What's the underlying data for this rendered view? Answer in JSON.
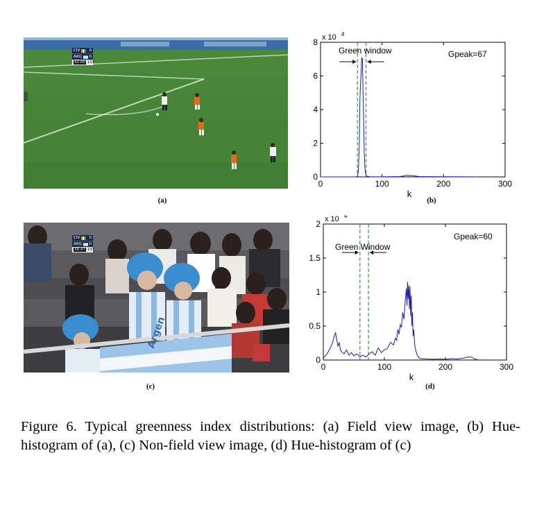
{
  "subfigures": {
    "a": {
      "label": "(a)"
    },
    "b": {
      "label": "(b)"
    },
    "c": {
      "label": "(c)"
    },
    "d": {
      "label": "(d)"
    }
  },
  "field_image": {
    "scorebug": {
      "team1": "CIV",
      "score1": "0",
      "team2": "ARG",
      "score2": "0",
      "clock": "42:00",
      "period": "1ST"
    }
  },
  "crowd_image": {
    "scorebug": {
      "team1": "CIV",
      "score1": "0",
      "team2": "ARG",
      "score2": "0",
      "clock": "38:47",
      "period": "1ST"
    },
    "banner_text": "Argen"
  },
  "caption": "Figure 6.  Typical greenness index distributions: (a) Field view image, (b) Hue-histogram of (a), (c) Non-field view image, (d) Hue-histogram of (c)",
  "chart_data": [
    {
      "id": "b",
      "type": "line",
      "xlabel": "k",
      "ylabel": "",
      "xlim": [
        0,
        300
      ],
      "ylim": [
        0,
        80000
      ],
      "xticks": [
        0,
        100,
        200,
        300
      ],
      "yticks": [
        0,
        2,
        4,
        6,
        8
      ],
      "yscale_label": "x 10",
      "yscale_exp": "4",
      "annotations": {
        "window_label": "Green window",
        "peak_label": "Gpeak=67"
      },
      "green_window": [
        60,
        74
      ],
      "colors": {
        "series": "#1a1aa6",
        "window": "#22aa22"
      },
      "series": [
        {
          "x": [
            0,
            50,
            58,
            60,
            61,
            62,
            63,
            64,
            65,
            66,
            67,
            68,
            69,
            70,
            71,
            72,
            73,
            74,
            76,
            80,
            100,
            130,
            140,
            150,
            160,
            200,
            250,
            255
          ],
          "y": [
            0,
            0,
            0,
            300,
            2000,
            8000,
            20000,
            45000,
            55000,
            62000,
            71000,
            70000,
            52000,
            35000,
            15000,
            6000,
            2500,
            800,
            300,
            100,
            50,
            200,
            900,
            700,
            200,
            100,
            50,
            0
          ]
        }
      ]
    },
    {
      "id": "d",
      "type": "line",
      "xlabel": "k",
      "ylabel": "",
      "xlim": [
        0,
        300
      ],
      "ylim": [
        0,
        20000
      ],
      "xticks": [
        0,
        100,
        200,
        300
      ],
      "yticks": [
        0,
        0.5,
        1,
        1.5,
        2
      ],
      "yscale_label": "x 10",
      "yscale_exp": "4",
      "annotations": {
        "window_label": "Green Window",
        "peak_label": "Gpeak=60"
      },
      "green_window": [
        60,
        74
      ],
      "colors": {
        "series": "#1a1aa6",
        "window": "#22aa22"
      },
      "series": [
        {
          "x": [
            0,
            5,
            10,
            15,
            18,
            20,
            22,
            24,
            26,
            28,
            30,
            34,
            38,
            42,
            46,
            50,
            55,
            60,
            65,
            70,
            75,
            80,
            85,
            90,
            95,
            100,
            105,
            110,
            115,
            118,
            120,
            122,
            124,
            126,
            128,
            130,
            132,
            134,
            136,
            137,
            138,
            139,
            140,
            141,
            142,
            143,
            144,
            145,
            146,
            147,
            148,
            150,
            152,
            154,
            156,
            158,
            160,
            170,
            180,
            190,
            200,
            210,
            220,
            230,
            240,
            245,
            250,
            255
          ],
          "y": [
            300,
            800,
            1500,
            2500,
            3500,
            4000,
            3000,
            2000,
            2600,
            1500,
            1200,
            900,
            1500,
            700,
            1100,
            600,
            900,
            500,
            700,
            450,
            900,
            1200,
            700,
            1800,
            1100,
            1500,
            1700,
            2600,
            2200,
            3200,
            2900,
            4500,
            3800,
            5200,
            4800,
            7000,
            6000,
            8500,
            10500,
            8000,
            11500,
            9000,
            11000,
            7500,
            10800,
            6500,
            9500,
            5000,
            7000,
            3500,
            4500,
            2000,
            1200,
            700,
            400,
            300,
            200,
            150,
            100,
            150,
            100,
            200,
            150,
            300,
            500,
            300,
            100,
            0
          ]
        }
      ]
    }
  ]
}
